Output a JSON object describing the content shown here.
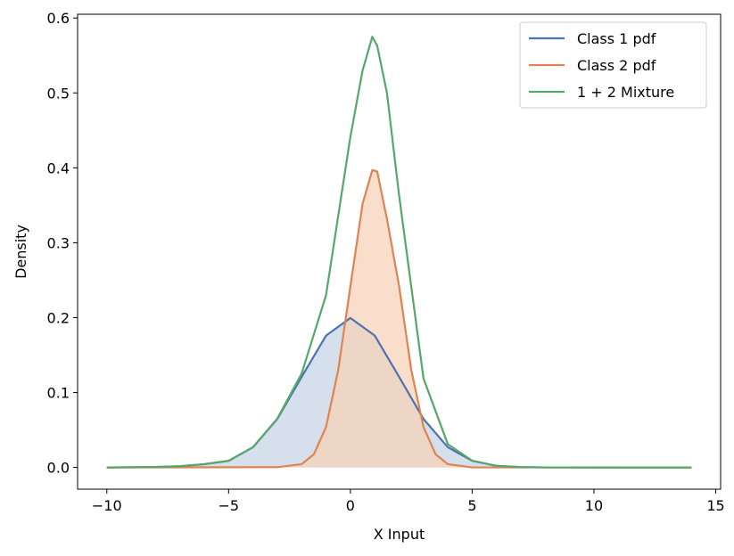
{
  "chart_data": {
    "type": "line",
    "xlabel": "X Input",
    "ylabel": "Density",
    "xlim": [
      -11.2,
      15.2
    ],
    "ylim": [
      -0.029,
      0.605
    ],
    "xticks": [
      -10,
      -5,
      0,
      5,
      10,
      15
    ],
    "xtick_labels": [
      "−10",
      "−5",
      "0",
      "5",
      "10",
      "15"
    ],
    "yticks": [
      0.0,
      0.1,
      0.2,
      0.3,
      0.4,
      0.5,
      0.6
    ],
    "ytick_labels": [
      "0.0",
      "0.1",
      "0.2",
      "0.3",
      "0.4",
      "0.5",
      "0.6"
    ],
    "grid": false,
    "legend_position": "top-right",
    "series": [
      {
        "name": "Class 1 pdf",
        "color": "#4c72b0",
        "fill": true,
        "fill_color": "#c8d4e6",
        "x": [
          -10,
          -8,
          -7,
          -6,
          -5,
          -4,
          -3,
          -2,
          -1,
          0,
          1,
          2,
          3,
          4,
          5,
          6,
          7,
          8,
          10,
          14
        ],
        "y": [
          0.0,
          0.0006,
          0.0016,
          0.0044,
          0.0088,
          0.027,
          0.0648,
          0.121,
          0.176,
          0.1995,
          0.176,
          0.121,
          0.0648,
          0.027,
          0.0088,
          0.0022,
          0.0004,
          0.0001,
          0.0,
          0.0
        ]
      },
      {
        "name": "Class 2 pdf",
        "color": "#dd8452",
        "fill": true,
        "fill_color": "#f5d3b9",
        "x": [
          -10,
          -3,
          -2,
          -1.5,
          -1,
          -0.5,
          0,
          0.5,
          0.9,
          1.1,
          1.5,
          2,
          2.5,
          3,
          3.5,
          4,
          5,
          14
        ],
        "y": [
          0.0,
          0.0004,
          0.0044,
          0.0175,
          0.054,
          0.13,
          0.242,
          0.352,
          0.397,
          0.395,
          0.332,
          0.242,
          0.13,
          0.054,
          0.0175,
          0.0044,
          0.0001,
          0.0
        ]
      },
      {
        "name": "1 + 2 Mixture",
        "color": "#55a868",
        "fill": false,
        "x": [
          -10,
          -8,
          -7,
          -6,
          -5,
          -4,
          -3,
          -2,
          -1,
          0,
          0.5,
          0.9,
          1.1,
          1.5,
          2,
          3,
          4,
          5,
          6,
          7,
          8,
          10,
          14
        ],
        "y": [
          0.0,
          0.0006,
          0.0016,
          0.0044,
          0.0088,
          0.027,
          0.0652,
          0.1254,
          0.23,
          0.4415,
          0.53,
          0.575,
          0.563,
          0.5,
          0.363,
          0.119,
          0.031,
          0.009,
          0.002,
          0.0004,
          0.0001,
          0.0,
          0.0
        ]
      }
    ]
  }
}
